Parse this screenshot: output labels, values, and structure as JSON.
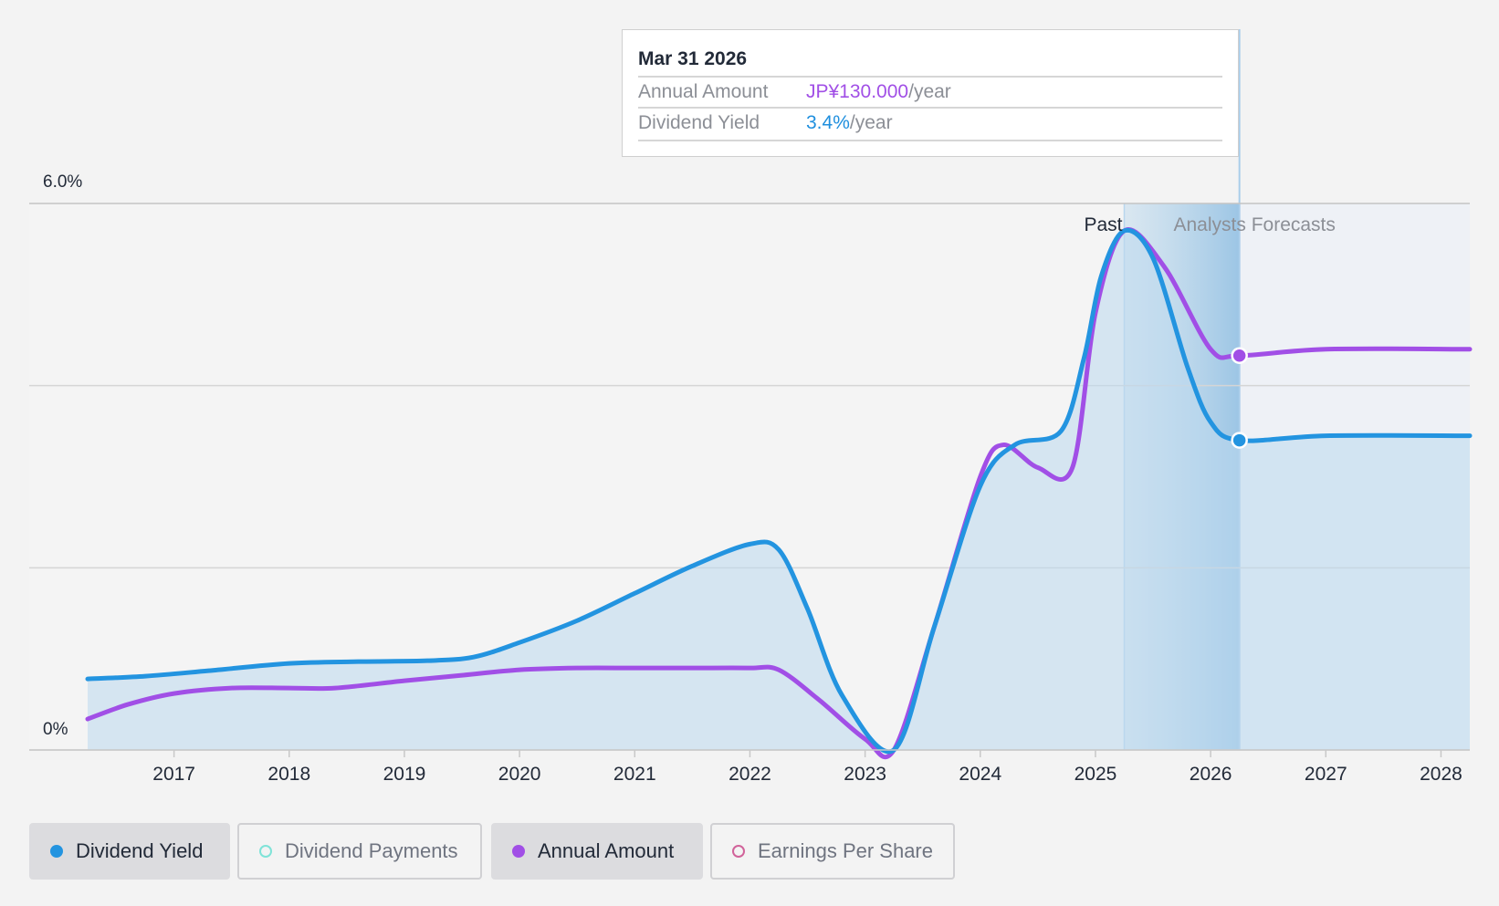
{
  "tooltip": {
    "date": "Mar 31 2026",
    "rows": [
      {
        "label": "Annual Amount",
        "value": "JP¥130.000",
        "unit": "/year",
        "color": "#a14fe6"
      },
      {
        "label": "Dividend Yield",
        "value": "3.4%",
        "unit": "/year",
        "color": "#1f8fde"
      }
    ]
  },
  "legend": [
    {
      "label": "Dividend Yield",
      "color": "#2394e0",
      "active": true,
      "marker": "filled"
    },
    {
      "label": "Dividend Payments",
      "color": "#7fe3d8",
      "active": false,
      "marker": "hollow"
    },
    {
      "label": "Annual Amount",
      "color": "#a14fe6",
      "active": true,
      "marker": "filled"
    },
    {
      "label": "Earnings Per Share",
      "color": "#d1639a",
      "active": false,
      "marker": "hollow"
    }
  ],
  "chart_data": {
    "type": "line",
    "y_tick_labels": [
      "6.0%",
      "0%"
    ],
    "ylim": [
      0,
      6.0
    ],
    "xlim": [
      2016.25,
      2028.25
    ],
    "x_tick_labels": [
      "2017",
      "2018",
      "2019",
      "2020",
      "2021",
      "2022",
      "2023",
      "2024",
      "2025",
      "2026",
      "2027",
      "2028"
    ],
    "grid": true,
    "region_labels": {
      "past": "Past",
      "forecast": "Analysts Forecasts"
    },
    "past_end": 2025.25,
    "forecast_start": 2026.25,
    "series": [
      {
        "name": "Dividend Yield",
        "color": "#2394e0",
        "filled": true,
        "x": [
          2016.25,
          2016.75,
          2017.3,
          2018.0,
          2018.6,
          2019.2,
          2019.6,
          2020.0,
          2020.5,
          2021.0,
          2021.5,
          2022.0,
          2022.25,
          2022.5,
          2022.8,
          2023.25,
          2023.6,
          2024.0,
          2024.3,
          2024.7,
          2024.9,
          2025.05,
          2025.25,
          2025.5,
          2025.8,
          2026.0,
          2026.25,
          2027.0,
          2028.25
        ],
        "y": [
          0.78,
          0.81,
          0.87,
          0.95,
          0.97,
          0.98,
          1.02,
          1.18,
          1.42,
          1.72,
          2.02,
          2.26,
          2.2,
          1.55,
          0.6,
          0.0,
          1.35,
          2.9,
          3.35,
          3.5,
          4.3,
          5.2,
          5.7,
          5.4,
          4.2,
          3.6,
          3.4,
          3.45,
          3.45
        ]
      },
      {
        "name": "Annual Amount",
        "color": "#a14fe6",
        "filled": false,
        "x": [
          2016.25,
          2016.6,
          2017.0,
          2017.5,
          2018.0,
          2018.4,
          2019.0,
          2019.5,
          2020.0,
          2020.5,
          2021.0,
          2021.5,
          2022.0,
          2022.25,
          2022.6,
          2023.0,
          2023.25,
          2023.6,
          2024.0,
          2024.2,
          2024.5,
          2024.8,
          2025.0,
          2025.25,
          2025.6,
          2026.0,
          2026.25,
          2027.0,
          2028.25
        ],
        "y": [
          0.34,
          0.5,
          0.62,
          0.68,
          0.68,
          0.68,
          0.76,
          0.82,
          0.88,
          0.9,
          0.9,
          0.9,
          0.9,
          0.88,
          0.55,
          0.12,
          0.0,
          1.35,
          3.0,
          3.35,
          3.1,
          3.1,
          4.8,
          5.7,
          5.3,
          4.4,
          4.33,
          4.4,
          4.4
        ]
      }
    ],
    "markers": [
      {
        "series": "Annual Amount",
        "x": 2026.25,
        "y": 4.33
      },
      {
        "series": "Dividend Yield",
        "x": 2026.25,
        "y": 3.4
      }
    ]
  }
}
